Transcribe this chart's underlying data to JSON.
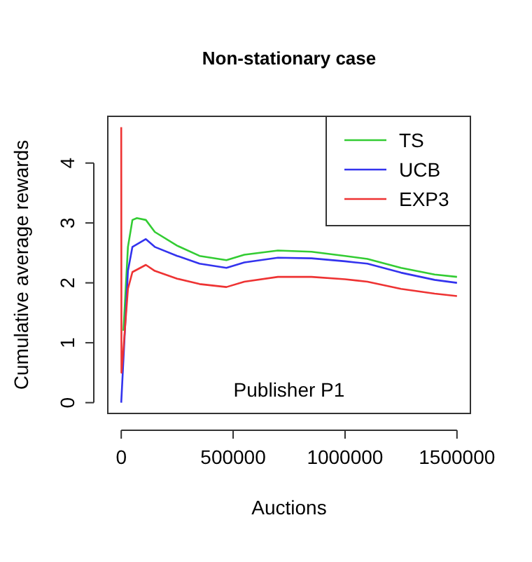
{
  "chart_data": {
    "type": "line",
    "title": "Non-stationary case",
    "xlabel": "Auctions",
    "ylabel": "Cumulative average rewards",
    "annotations": [
      "Publisher P1"
    ],
    "xlim": [
      -60000,
      1560000
    ],
    "ylim": [
      -0.18,
      4.78
    ],
    "xticks": [
      0,
      500000,
      1000000,
      1500000
    ],
    "yticks": [
      0,
      1,
      2,
      3,
      4
    ],
    "legend": "top right",
    "grid": false,
    "marker": "none",
    "line_style": "solid",
    "series": [
      {
        "name": "TS",
        "color": "#33cc33",
        "x": [
          10000,
          30000,
          50000,
          70000,
          110000,
          150000,
          250000,
          350000,
          470000,
          550000,
          700000,
          850000,
          1000000,
          1100000,
          1250000,
          1400000,
          1500000
        ],
        "values": [
          1.2,
          2.6,
          3.05,
          3.08,
          3.05,
          2.85,
          2.62,
          2.45,
          2.38,
          2.47,
          2.54,
          2.52,
          2.45,
          2.4,
          2.25,
          2.14,
          2.1
        ]
      },
      {
        "name": "UCB",
        "color": "#3333ee",
        "x": [
          0,
          30000,
          50000,
          110000,
          150000,
          250000,
          350000,
          470000,
          550000,
          700000,
          850000,
          1000000,
          1100000,
          1250000,
          1400000,
          1500000
        ],
        "values": [
          0,
          2.2,
          2.6,
          2.73,
          2.6,
          2.45,
          2.32,
          2.25,
          2.34,
          2.42,
          2.41,
          2.36,
          2.32,
          2.17,
          2.05,
          2.0
        ]
      },
      {
        "name": "EXP3",
        "color": "#ee3333",
        "x": [
          0,
          1000,
          10000,
          30000,
          50000,
          110000,
          150000,
          250000,
          350000,
          470000,
          550000,
          700000,
          850000,
          1000000,
          1100000,
          1250000,
          1400000,
          1500000
        ],
        "values": [
          4.6,
          0.5,
          0.9,
          1.9,
          2.18,
          2.3,
          2.2,
          2.07,
          1.98,
          1.93,
          2.02,
          2.1,
          2.1,
          2.06,
          2.02,
          1.9,
          1.82,
          1.78
        ]
      }
    ]
  }
}
